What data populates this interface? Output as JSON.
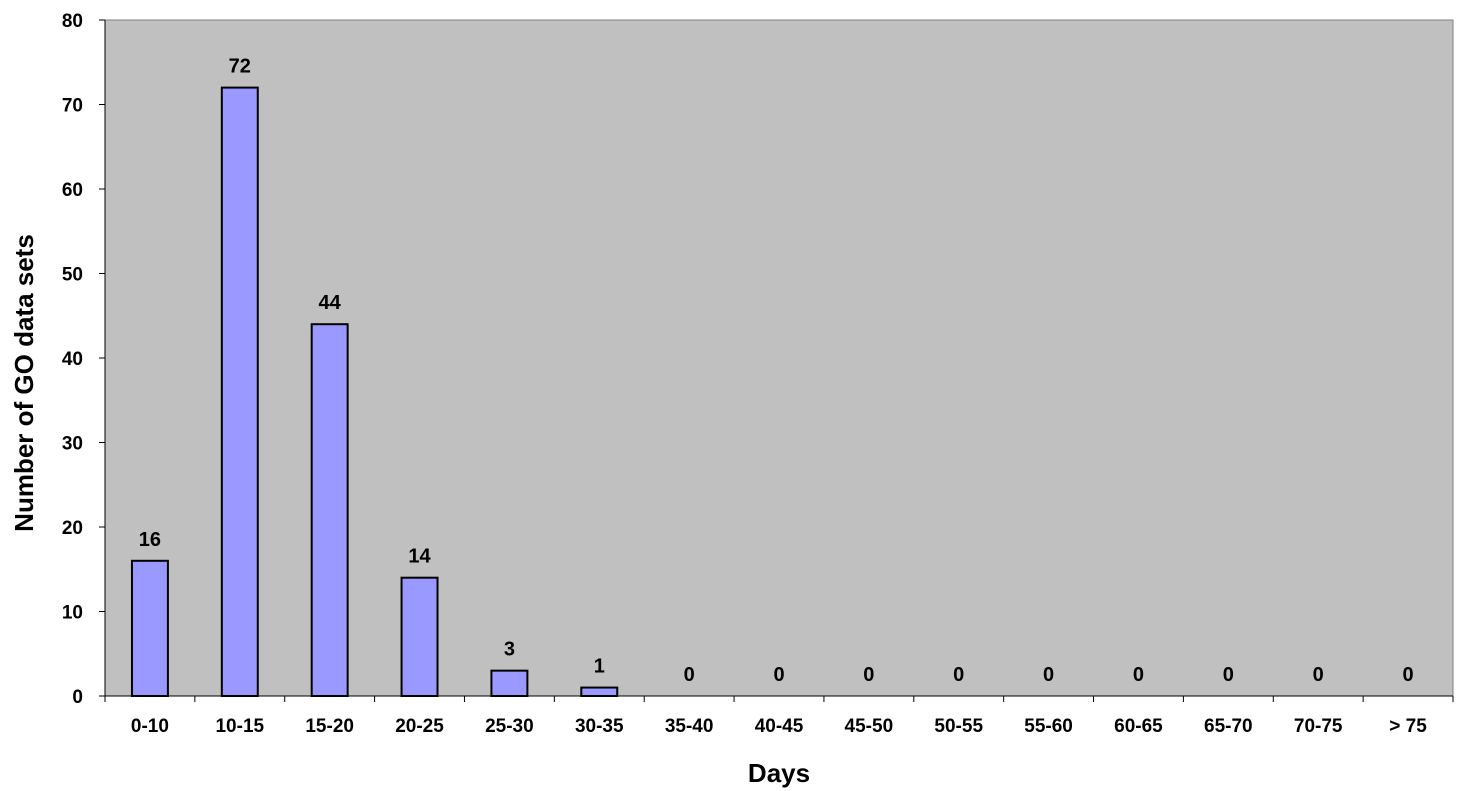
{
  "chart_data": {
    "type": "bar",
    "title": "",
    "xlabel": "Days",
    "ylabel": "Number of GO data sets",
    "categories": [
      "0-10",
      "10-15",
      "15-20",
      "20-25",
      "25-30",
      "30-35",
      "35-40",
      "40-45",
      "45-50",
      "50-55",
      "55-60",
      "60-65",
      "65-70",
      "70-75",
      "> 75"
    ],
    "values": [
      16,
      72,
      44,
      14,
      3,
      1,
      0,
      0,
      0,
      0,
      0,
      0,
      0,
      0,
      0
    ],
    "data_labels": [
      "16",
      "72",
      "44",
      "14",
      "3",
      "1",
      "0",
      "0",
      "0",
      "0",
      "0",
      "0",
      "0",
      "0",
      "0"
    ],
    "ylim": [
      0,
      80
    ],
    "yticks": [
      "0",
      "10",
      "20",
      "30",
      "40",
      "50",
      "60",
      "70",
      "80"
    ],
    "grid": false,
    "legend": "none",
    "colors": {
      "plot_background": "#c0c0c0",
      "bar_fill": "#9999ff",
      "bar_stroke": "#000000"
    }
  }
}
